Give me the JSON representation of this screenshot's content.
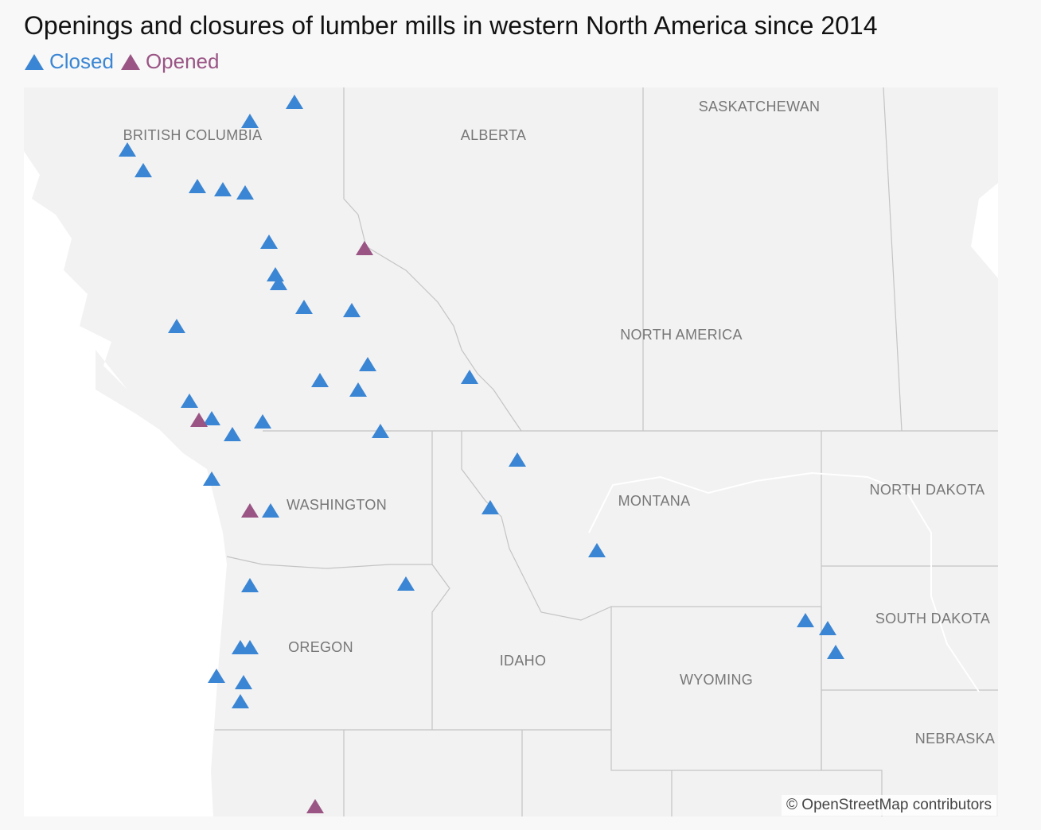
{
  "title": "Openings and closures of lumber mills in western North America since 2014",
  "legend": [
    {
      "label": "Closed",
      "color": "#3b86d4"
    },
    {
      "label": "Opened",
      "color": "#9a5585"
    }
  ],
  "regions": [
    "BRITISH COLUMBIA",
    "ALBERTA",
    "SASKATCHEWAN",
    "NORTH AMERICA",
    "WASHINGTON",
    "MONTANA",
    "NORTH DAKOTA",
    "SOUTH DAKOTA",
    "OREGON",
    "IDAHO",
    "WYOMING",
    "NEBRASKA"
  ],
  "attribution": "© OpenStreetMap contributors"
}
